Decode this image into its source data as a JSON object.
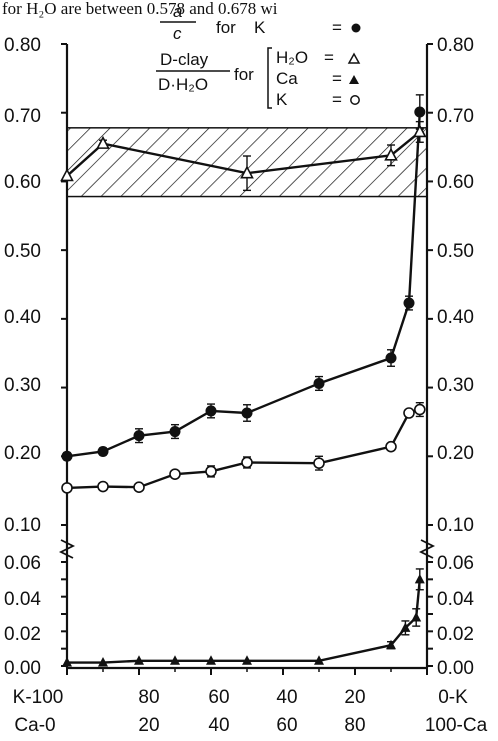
{
  "header": {
    "text": "for H₂O are between 0.578 and 0.678 wi"
  },
  "legend": {
    "top_fraction_num": "a",
    "top_fraction_den": "c",
    "for_word": "for",
    "k_label": "K",
    "eq_k": "=",
    "dclay_num": "D-clay",
    "dclay_den": "D·H₂O",
    "for_word2": "for",
    "h2o_label": "H₂O",
    "h2o_eq": "=",
    "ca_label": "Ca",
    "ca_eq": "=",
    "k2_label": "K",
    "k2_eq": "="
  },
  "axes": {
    "left_upper_ticks": [
      "0.80",
      "0.70",
      "0.60",
      "0.50",
      "0.40",
      "0.30",
      "0.20",
      "0.10"
    ],
    "left_lower_ticks": [
      "0.06",
      "0.04",
      "0.02",
      "0.00"
    ],
    "right_upper_ticks": [
      "0.80",
      "0.70",
      "0.60",
      "0.50",
      "0.40",
      "0.30",
      "0.20",
      "0.10"
    ],
    "right_lower_ticks": [
      "0.06",
      "0.04",
      "0.02",
      "0.00"
    ],
    "x_row1": [
      "K-100",
      "80",
      "60",
      "40",
      "20",
      "0-K"
    ],
    "x_row2": [
      "Ca-0",
      "20",
      "40",
      "60",
      "80",
      "100-Ca"
    ]
  },
  "chart_data": {
    "type": "line",
    "x_domain": [
      100,
      0
    ],
    "x_ticks": [
      100,
      80,
      60,
      40,
      20,
      0
    ],
    "y_upper_range": [
      0.1,
      0.8
    ],
    "y_lower_range": [
      0.0,
      0.06
    ],
    "shaded_band": [
      0.578,
      0.678
    ],
    "series": [
      {
        "name": "a/c for K",
        "marker": "filled-circle",
        "panel": "upper",
        "x": [
          100,
          90,
          80,
          70,
          60,
          50,
          30,
          10,
          5,
          2
        ],
        "y": [
          0.2,
          0.207,
          0.23,
          0.236,
          0.266,
          0.263,
          0.306,
          0.343,
          0.423,
          0.701
        ],
        "err": [
          0.005,
          0.005,
          0.01,
          0.01,
          0.01,
          0.012,
          0.01,
          0.012,
          0.01,
          0.025
        ]
      },
      {
        "name": "D-clay/D·H₂O for K",
        "marker": "open-circle",
        "panel": "upper",
        "x": [
          100,
          90,
          80,
          70,
          60,
          50,
          30,
          10,
          5,
          2
        ],
        "y": [
          0.154,
          0.156,
          0.155,
          0.174,
          0.178,
          0.191,
          0.19,
          0.214,
          0.263,
          0.268
        ],
        "err": [
          0.0,
          0.0,
          0.0,
          0.005,
          0.008,
          0.008,
          0.01,
          0.005,
          0.0,
          0.01
        ]
      },
      {
        "name": "D-clay/D·H₂O for H₂O",
        "marker": "open-triangle",
        "panel": "upper",
        "x": [
          100,
          90,
          50,
          10,
          2
        ],
        "y": [
          0.608,
          0.655,
          0.612,
          0.638,
          0.672
        ],
        "err": [
          0.0,
          0.005,
          0.025,
          0.015,
          0.015
        ]
      },
      {
        "name": "D-clay/D·H₂O for Ca",
        "marker": "filled-triangle",
        "panel": "lower",
        "x": [
          100,
          90,
          80,
          70,
          60,
          50,
          30,
          10,
          6,
          3,
          2
        ],
        "y": [
          0.002,
          0.002,
          0.003,
          0.003,
          0.003,
          0.003,
          0.003,
          0.012,
          0.022,
          0.028,
          0.05
        ],
        "err": [
          0.0,
          0.0,
          0.0,
          0.0,
          0.0,
          0.0,
          0.0,
          0.002,
          0.004,
          0.005,
          0.006
        ]
      }
    ]
  }
}
